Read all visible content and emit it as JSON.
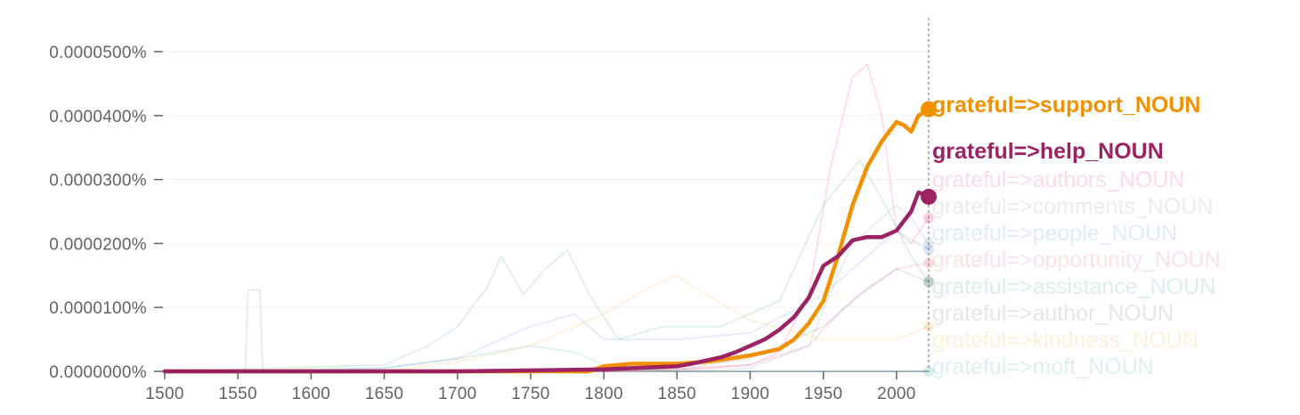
{
  "chart_data": {
    "type": "line",
    "title": "",
    "xlabel": "",
    "ylabel": "",
    "xlim": [
      1500,
      2022
    ],
    "ylim": [
      0,
      5e-08
    ],
    "grid": true,
    "legend_placement": "right-end-labels",
    "x_ticks": [
      "1500",
      "1550",
      "1600",
      "1650",
      "1700",
      "1750",
      "1800",
      "1850",
      "1900",
      "1950",
      "2000"
    ],
    "y_ticks": [
      "0.0000000%",
      "0.0000100%",
      "0.0000200%",
      "0.0000300%",
      "0.0000400%",
      "0.0000500%"
    ],
    "y_tick_values": [
      0,
      1e-08,
      2e-08,
      3e-08,
      4e-08,
      5e-08
    ],
    "cursor_year": 2022,
    "series": [
      {
        "name": "grateful=>support_NOUN",
        "color": "#f29100",
        "highlighted": true,
        "x": [
          1500,
          1650,
          1700,
          1790,
          1800,
          1820,
          1850,
          1870,
          1880,
          1900,
          1920,
          1930,
          1940,
          1950,
          1960,
          1970,
          1980,
          1990,
          2000,
          2005,
          2010,
          2015,
          2022
        ],
        "y": [
          0,
          0,
          0,
          0,
          8e-10,
          1.2e-09,
          1.2e-09,
          1.5e-09,
          1.8e-09,
          2.5e-09,
          3.5e-09,
          5e-09,
          7.5e-09,
          1.1e-08,
          1.8e-08,
          2.6e-08,
          3.2e-08,
          3.6e-08,
          3.9e-08,
          3.85e-08,
          3.75e-08,
          4e-08,
          4.1e-08
        ]
      },
      {
        "name": "grateful=>help_NOUN",
        "color": "#9c2264",
        "highlighted": true,
        "x": [
          1500,
          1650,
          1700,
          1800,
          1850,
          1860,
          1880,
          1890,
          1900,
          1910,
          1920,
          1930,
          1940,
          1950,
          1960,
          1970,
          1980,
          1990,
          2000,
          2010,
          2015,
          2022
        ],
        "y": [
          0,
          0,
          0,
          3e-10,
          8e-10,
          1.2e-09,
          2.2e-09,
          3e-09,
          4e-09,
          5e-09,
          6.5e-09,
          8.5e-09,
          1.15e-08,
          1.65e-08,
          1.8e-08,
          2.05e-08,
          2.1e-08,
          2.1e-08,
          2.2e-08,
          2.5e-08,
          2.8e-08,
          2.73e-08
        ]
      },
      {
        "name": "grateful=>authors_NOUN",
        "color": "#e91e63",
        "highlighted": false,
        "x": [
          1500,
          1800,
          1850,
          1900,
          1920,
          1940,
          1955,
          1970,
          1980,
          1990,
          2000,
          2010,
          2022
        ],
        "y": [
          0,
          0,
          3e-10,
          1e-09,
          3e-09,
          1.2e-08,
          3.2e-08,
          4.6e-08,
          4.8e-08,
          4e-08,
          2.2e-08,
          2e-08,
          2.4e-08
        ]
      },
      {
        "name": "grateful=>comments_NOUN",
        "color": "#7b8ca4",
        "highlighted": false,
        "x": [
          1500,
          1850,
          1900,
          1940,
          1960,
          1970,
          1980,
          1990,
          2000,
          2010,
          2022
        ],
        "y": [
          0,
          0,
          5e-10,
          4e-09,
          1.5e-08,
          2e-08,
          2.2e-08,
          2.4e-08,
          2.6e-08,
          2.4e-08,
          2e-08
        ]
      },
      {
        "name": "grateful=>people_NOUN",
        "color": "#4f7dd6",
        "highlighted": false,
        "x": [
          1500,
          1550,
          1555,
          1557,
          1565,
          1567,
          1650,
          1700,
          1750,
          1780,
          1800,
          1850,
          1900,
          1950,
          2000,
          2022
        ],
        "y": [
          0,
          0,
          0,
          1.27e-08,
          1.27e-08,
          0,
          5e-10,
          2e-09,
          7e-09,
          9e-09,
          5e-09,
          5e-09,
          6e-09,
          1.2e-08,
          2.2e-08,
          1.9e-08
        ]
      },
      {
        "name": "grateful=>opportunity_NOUN",
        "color": "#e8505b",
        "highlighted": false,
        "x": [
          1500,
          1850,
          1900,
          1940,
          1960,
          1980,
          2000,
          2022
        ],
        "y": [
          0,
          2e-10,
          1e-09,
          4e-09,
          9e-09,
          1.3e-08,
          1.6e-08,
          1.7e-08
        ]
      },
      {
        "name": "grateful=>assistance_NOUN",
        "color": "#2e9e5b",
        "highlighted": false,
        "x": [
          1500,
          1650,
          1680,
          1700,
          1720,
          1730,
          1745,
          1760,
          1775,
          1790,
          1810,
          1840,
          1880,
          1920,
          1950,
          1975,
          1990,
          2010,
          2022
        ],
        "y": [
          0,
          1e-09,
          4e-09,
          7e-09,
          1.3e-08,
          1.8e-08,
          1.2e-08,
          1.6e-08,
          1.9e-08,
          1.2e-08,
          5e-09,
          7e-09,
          7e-09,
          1.1e-08,
          2.6e-08,
          3.3e-08,
          2.7e-08,
          1.8e-08,
          1.4e-08
        ]
      },
      {
        "name": "grateful=>author_NOUN",
        "color": "#5f6368",
        "highlighted": false,
        "x": [
          1500,
          1850,
          1900,
          1950,
          1975,
          2000,
          2022
        ],
        "y": [
          0,
          3e-10,
          2e-09,
          7e-09,
          1.2e-08,
          1.6e-08,
          1.4e-08
        ]
      },
      {
        "name": "grateful=>kindness_NOUN",
        "color": "#f5a623",
        "highlighted": false,
        "x": [
          1500,
          1650,
          1700,
          1750,
          1800,
          1830,
          1850,
          1870,
          1900,
          1950,
          2000,
          2022
        ],
        "y": [
          0,
          0,
          1.5e-09,
          4e-09,
          9e-09,
          1.3e-08,
          1.5e-08,
          1.2e-08,
          8e-09,
          5e-09,
          5e-09,
          7e-09
        ]
      },
      {
        "name": "grateful=>moft_NOUN",
        "color": "#26a69a",
        "highlighted": false,
        "x": [
          1500,
          1650,
          1700,
          1750,
          1780,
          1800,
          1820,
          1850,
          2022
        ],
        "y": [
          0,
          5e-10,
          2e-09,
          4e-09,
          3e-09,
          1e-09,
          3e-10,
          0,
          0
        ]
      }
    ]
  }
}
